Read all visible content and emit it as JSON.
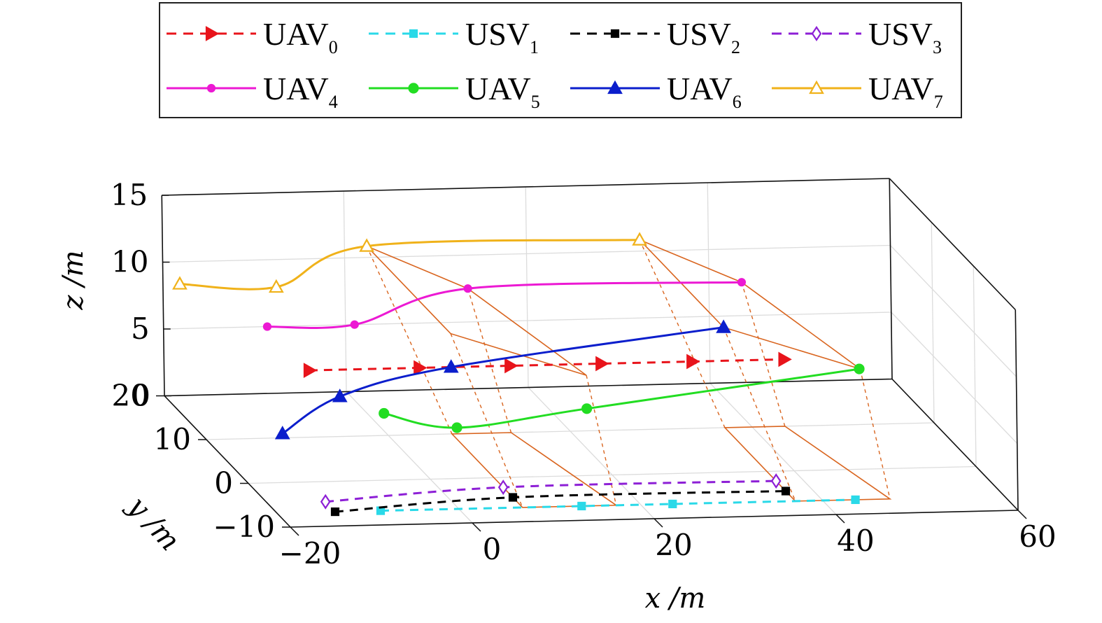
{
  "chart_data": {
    "type": "line",
    "projection": "3d",
    "grid": true,
    "legend_position": "top",
    "xlabel": "x /m",
    "ylabel": "y /m",
    "zlabel": "z /m",
    "xlim": [
      -20,
      60
    ],
    "ylim": [
      -10,
      20
    ],
    "zlim": [
      0,
      15
    ],
    "xticks": [
      "−20",
      "0",
      "20",
      "40",
      "60"
    ],
    "yticks": [
      "−10",
      "0",
      "10",
      "20"
    ],
    "zticks": [
      "0",
      "5",
      "10",
      "15"
    ],
    "series": [
      {
        "name": "UAV",
        "sub": "0",
        "color": "#e8141b",
        "dash": true,
        "marker": "tri-right",
        "fill": true,
        "points": [
          [
            -8.6,
            10,
            5
          ],
          [
            3.5,
            10,
            5
          ],
          [
            13.5,
            10,
            5
          ],
          [
            23.5,
            10,
            5
          ],
          [
            33.5,
            10,
            5
          ],
          [
            43.6,
            10,
            5
          ]
        ]
      },
      {
        "name": "USV",
        "sub": "1",
        "color": "#2ad9e8",
        "dash": true,
        "marker": "square",
        "fill": true,
        "points": [
          [
            -8.6,
            -6.8,
            0
          ],
          [
            13.5,
            -6.8,
            0
          ],
          [
            23.5,
            -6.8,
            0
          ],
          [
            43.6,
            -6.8,
            0
          ]
        ]
      },
      {
        "name": "USV",
        "sub": "2",
        "color": "#000000",
        "dash": true,
        "marker": "square",
        "fill": true,
        "points": [
          [
            -13.6,
            -6.8,
            0
          ],
          [
            7,
            -4.5,
            0
          ],
          [
            37,
            -4.5,
            0
          ]
        ]
      },
      {
        "name": "USV",
        "sub": "3",
        "color": "#8d1fd6",
        "dash": true,
        "marker": "diamond",
        "fill": false,
        "points": [
          [
            -13.6,
            -4.5,
            0
          ],
          [
            7,
            -2.2,
            0
          ],
          [
            37,
            -2.2,
            0
          ]
        ]
      },
      {
        "name": "UAV",
        "sub": "4",
        "color": "#ec19d3",
        "dash": false,
        "marker": "dot",
        "fill": true,
        "points": [
          [
            -8.6,
            20,
            5
          ],
          [
            1,
            20,
            5
          ],
          [
            13.5,
            20,
            7.5
          ],
          [
            43.6,
            20,
            7.5
          ]
        ]
      },
      {
        "name": "UAV",
        "sub": "5",
        "color": "#22dd22",
        "dash": false,
        "marker": "circle",
        "fill": true,
        "points": [
          [
            -5,
            0,
            5
          ],
          [
            3,
            0,
            3.8
          ],
          [
            17.3,
            0,
            5
          ],
          [
            47.3,
            0,
            7.5
          ]
        ]
      },
      {
        "name": "UAV",
        "sub": "6",
        "color": "#0b1ecc",
        "dash": false,
        "marker": "tri-up",
        "fill": true,
        "points": [
          [
            -18,
            -4,
            5
          ],
          [
            -8,
            4,
            5
          ],
          [
            7,
            10,
            5
          ],
          [
            37,
            10,
            7.5
          ]
        ]
      },
      {
        "name": "UAV",
        "sub": "7",
        "color": "#f0b21a",
        "dash": false,
        "marker": "tri-up",
        "fill": false,
        "points": [
          [
            -13.6,
            30,
            5
          ],
          [
            -3,
            30,
            4.6
          ],
          [
            7,
            30,
            7.5
          ],
          [
            37,
            30,
            7.5
          ]
        ]
      }
    ]
  }
}
